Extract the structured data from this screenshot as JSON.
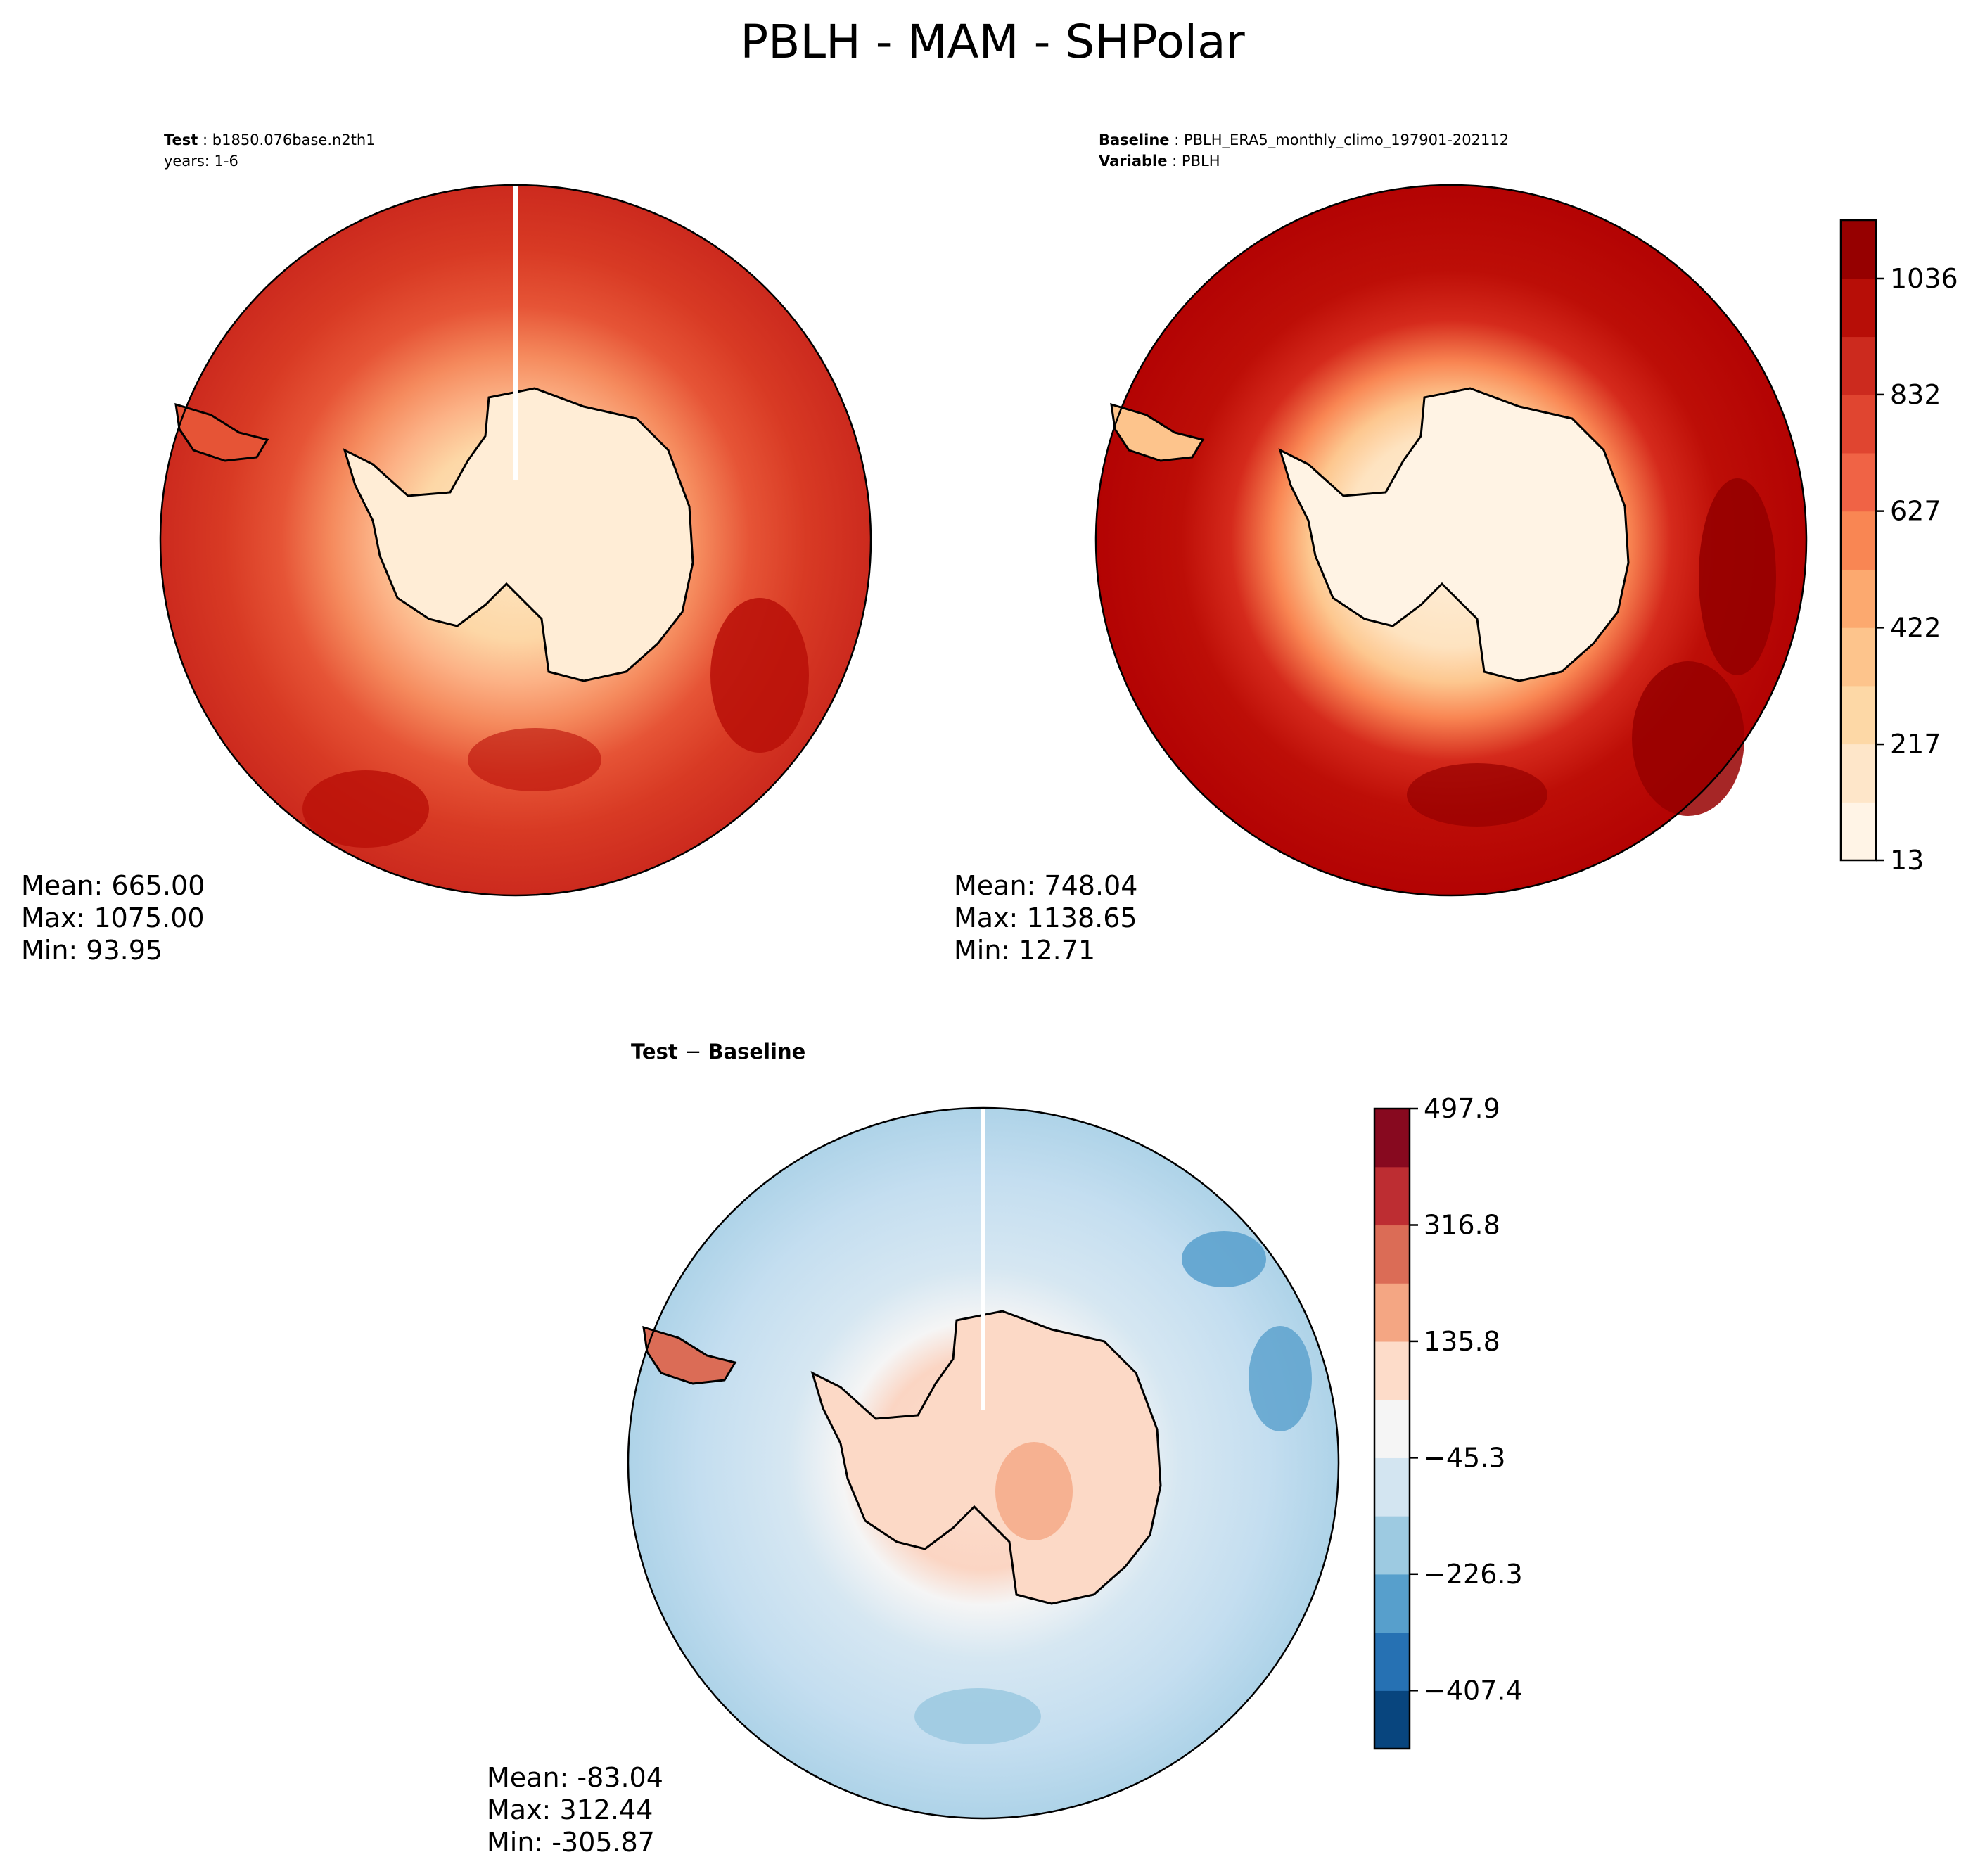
{
  "chart_data": {
    "type": "contourf",
    "title": "PBLH - MAM - SHPolar",
    "panels": [
      {
        "id": "test",
        "header_label": "Test",
        "header_value": "b1850.076base.n2th1",
        "subheader": "years: 1-6",
        "stats": {
          "mean": "Mean: 665.00",
          "max": "Max: 1075.00",
          "min": "Min: 93.95"
        },
        "colormap": "OrRd"
      },
      {
        "id": "baseline",
        "header_label": "Baseline",
        "header_value": "PBLH_ERA5_monthly_climo_197901-202112",
        "subheader_label": "Variable",
        "subheader_value": "PBLH",
        "stats": {
          "mean": "Mean: 748.04",
          "max": "Max: 1138.65",
          "min": "Min: 12.71"
        },
        "colormap": "OrRd"
      },
      {
        "id": "difference",
        "header_label": "Test",
        "header_minus": " − ",
        "header_value": "Baseline",
        "stats": {
          "mean": "Mean: -83.04",
          "max": "Max: 312.44",
          "min": "Min: -305.87"
        },
        "colormap": "RdBu_r"
      }
    ],
    "colorbars": [
      {
        "id": "main",
        "range": [
          13,
          1138.65
        ],
        "levels": 11,
        "ticks": [
          13,
          217,
          422,
          627,
          832,
          1036
        ],
        "tick_labels": [
          "13",
          "217",
          "422",
          "627",
          "832",
          "1036"
        ],
        "colors": [
          "#fff4e6",
          "#fee6c9",
          "#fdd8a6",
          "#fdc48c",
          "#fca96f",
          "#f98653",
          "#f06345",
          "#e04530",
          "#cc2a1e",
          "#b70e07",
          "#960000"
        ]
      },
      {
        "id": "diff",
        "range": [
          -497.9,
          497.9
        ],
        "levels": 11,
        "ticks": [
          -407.4,
          -226.3,
          -45.3,
          135.8,
          316.8,
          497.9
        ],
        "tick_labels": [
          "−407.4",
          "−226.3",
          "−45.3",
          "135.8",
          "316.8",
          "497.9"
        ],
        "colors": [
          "#08457e",
          "#2671b3",
          "#579fcc",
          "#9dcae1",
          "#d3e5f1",
          "#f5f5f5",
          "#fddcc9",
          "#f4a683",
          "#db6c56",
          "#bd2d32",
          "#87091f"
        ]
      }
    ]
  }
}
